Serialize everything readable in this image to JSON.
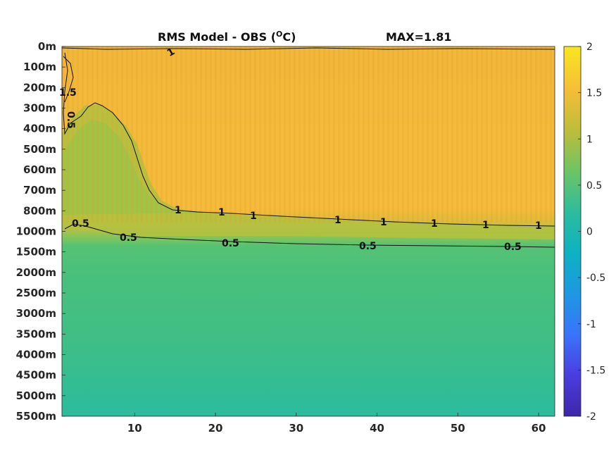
{
  "chart_data": {
    "type": "heatmap",
    "title": "RMS Model - OBS (",
    "title_super": "O",
    "title_end": "C)",
    "max_label": "MAX=1.81",
    "x_ticks": [
      10,
      20,
      30,
      40,
      50,
      60
    ],
    "x_range": [
      1,
      62
    ],
    "y_labels": [
      "0m",
      "100m",
      "200m",
      "300m",
      "400m",
      "500m",
      "600m",
      "700m",
      "800m",
      "1000m",
      "1500m",
      "2000m",
      "2500m",
      "3000m",
      "3500m",
      "4000m",
      "4500m",
      "5000m",
      "5500m"
    ],
    "colorbar": {
      "ticks": [
        "2",
        "1.5",
        "1",
        "0.5",
        "0",
        "-0.5",
        "-1",
        "-1.5",
        "-2"
      ],
      "range": [
        -2,
        2
      ],
      "colormap": [
        "#3e26a8",
        "#4a3de0",
        "#3a73fb",
        "#1f97e2",
        "#0db1c3",
        "#2cbc9e",
        "#6bc466",
        "#bcbd3c",
        "#f5bd38",
        "#f9e520"
      ]
    },
    "field": {
      "upper_value": 1.3,
      "mid_value": 0.6,
      "deep_value": 0.35,
      "bottom_value": 0.3
    },
    "contours": [
      {
        "level": "1.5",
        "label_positions": [
          [
            1.8,
            "200m"
          ]
        ]
      },
      {
        "level": "1",
        "label_positions": [
          [
            14,
            "0m"
          ],
          [
            15.5,
            "800m"
          ],
          [
            24,
            "800m"
          ],
          [
            35,
            "800m"
          ],
          [
            41,
            "800m"
          ],
          [
            47,
            "800m"
          ],
          [
            54,
            "800m"
          ],
          [
            60,
            "800m"
          ]
        ]
      },
      {
        "level": "0.5",
        "label_positions": [
          [
            1,
            "300m"
          ],
          [
            3.5,
            "1000m"
          ],
          [
            9,
            "1000m"
          ],
          [
            22,
            "1500m"
          ],
          [
            40,
            "1500m"
          ],
          [
            58,
            "1500m"
          ]
        ]
      }
    ],
    "contour_labels": [
      "1",
      "1.5",
      "0.5",
      "1",
      "1",
      "1",
      "1",
      "1",
      "1",
      "1",
      "1",
      "0.5",
      "0.5",
      "0.5",
      "0.5",
      "0.5"
    ]
  }
}
